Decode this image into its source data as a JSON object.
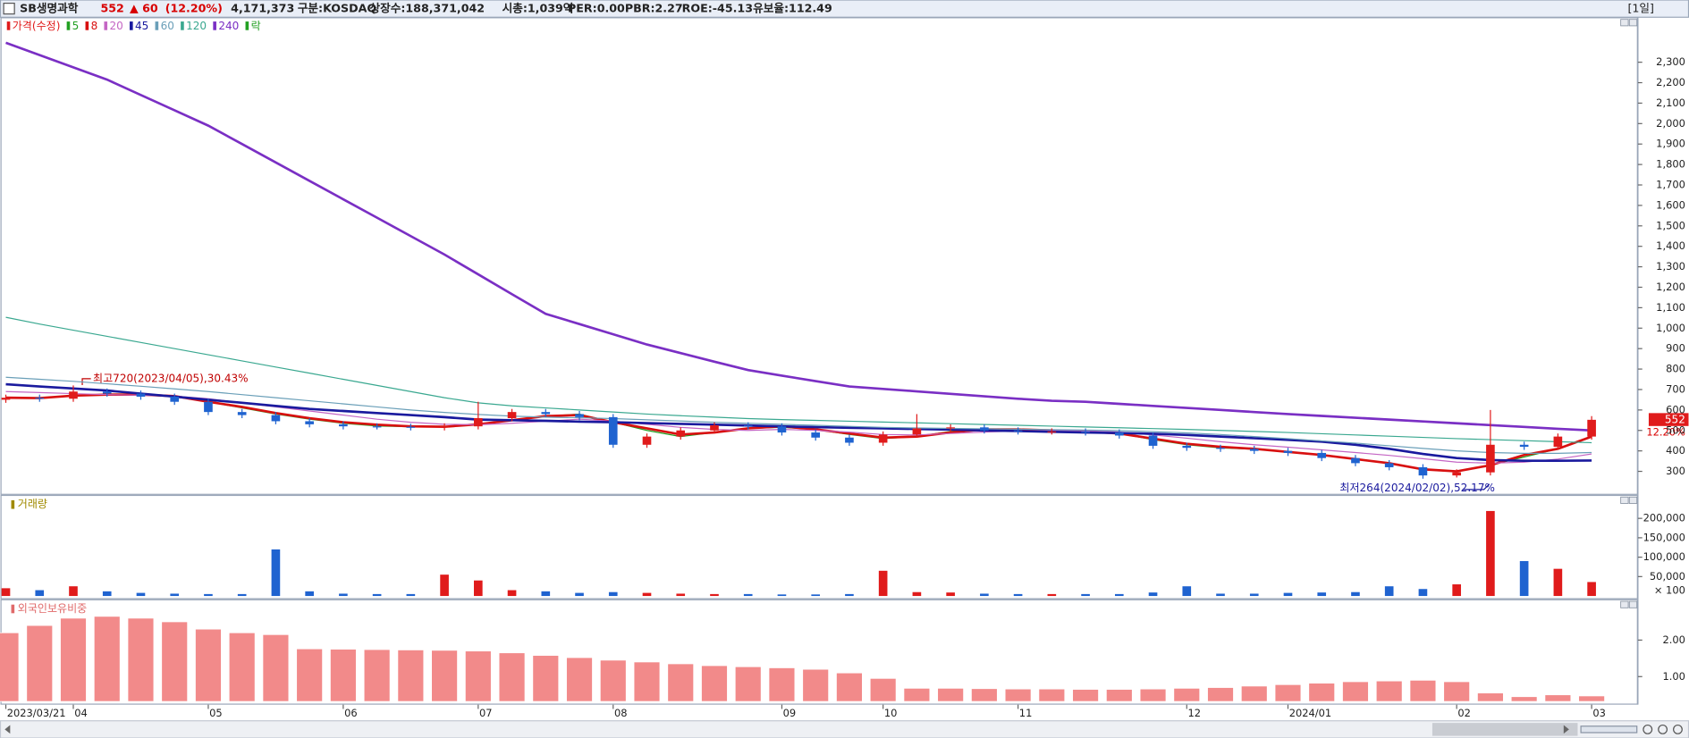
{
  "header": {
    "name": "SB생명과학",
    "price": "552",
    "change": "▲ 60",
    "change_rate": "(12.20%)",
    "volume": "4,171,373",
    "market": "구분:KOSDAQ",
    "shares": "상장수:188,371,042",
    "cap": "시총:1,039억",
    "per": "PER:0.00",
    "pbr": "PBR:2.27",
    "roe": "ROE:-45.13",
    "reserve": "유보율:112.49",
    "period": "[1일]"
  },
  "price_marker": {
    "price": "552",
    "rate": "12.20%"
  },
  "chart_data": [
    {
      "type": "candlestick",
      "legend_title": "가격(수정)",
      "lock_label": "락",
      "up_color": "#e01b1b",
      "down_color": "#1f63d0",
      "annotations": [
        "최고720(2023/04/05),30.43%",
        "최저264(2024/02/02),52.17%"
      ],
      "categories": [
        "2023/03/21",
        null,
        "04",
        null,
        null,
        null,
        "05",
        null,
        null,
        null,
        "06",
        null,
        null,
        null,
        "07",
        null,
        null,
        null,
        "08",
        null,
        null,
        null,
        null,
        "09",
        null,
        null,
        "10",
        null,
        null,
        null,
        "11",
        null,
        null,
        null,
        null,
        "12",
        null,
        null,
        "2024/01",
        null,
        null,
        null,
        null,
        "02",
        null,
        null,
        null,
        "03"
      ],
      "open": [
        650,
        660,
        655,
        690,
        680,
        665,
        640,
        590,
        575,
        545,
        530,
        520,
        518,
        515,
        520,
        560,
        590,
        580,
        565,
        430,
        470,
        500,
        525,
        520,
        490,
        465,
        440,
        480,
        510,
        515,
        500,
        495,
        495,
        490,
        475,
        425,
        415,
        410,
        400,
        390,
        365,
        340,
        320,
        280,
        295,
        430,
        420,
        470
      ],
      "high": [
        675,
        675,
        720,
        705,
        695,
        680,
        655,
        605,
        590,
        560,
        545,
        535,
        533,
        535,
        640,
        605,
        605,
        595,
        580,
        485,
        515,
        540,
        540,
        535,
        505,
        480,
        495,
        580,
        530,
        530,
        515,
        510,
        510,
        505,
        490,
        440,
        430,
        425,
        415,
        405,
        380,
        355,
        335,
        310,
        600,
        445,
        485,
        570
      ],
      "low": [
        635,
        640,
        640,
        665,
        650,
        625,
        575,
        560,
        530,
        515,
        505,
        505,
        500,
        500,
        505,
        545,
        565,
        550,
        415,
        415,
        455,
        485,
        505,
        475,
        450,
        425,
        425,
        465,
        495,
        485,
        480,
        480,
        475,
        460,
        410,
        400,
        395,
        385,
        375,
        350,
        325,
        305,
        264,
        270,
        280,
        405,
        405,
        455
      ],
      "close": [
        660,
        655,
        690,
        680,
        665,
        640,
        590,
        575,
        545,
        530,
        520,
        518,
        515,
        520,
        560,
        590,
        580,
        565,
        430,
        470,
        500,
        525,
        520,
        490,
        465,
        440,
        480,
        510,
        515,
        500,
        495,
        495,
        490,
        475,
        425,
        415,
        410,
        400,
        390,
        365,
        340,
        320,
        280,
        295,
        430,
        420,
        470,
        552
      ],
      "series": [
        {
          "name": "5",
          "color": "#22a022",
          "values": [
            658,
            657,
            670,
            678,
            678,
            668,
            640,
            610,
            580,
            555,
            535,
            522,
            518,
            517,
            530,
            550,
            570,
            580,
            540,
            500,
            470,
            490,
            510,
            515,
            505,
            480,
            460,
            470,
            495,
            508,
            505,
            500,
            495,
            485,
            455,
            430,
            415,
            408,
            395,
            380,
            360,
            340,
            310,
            300,
            330,
            370,
            410,
            470
          ]
        },
        {
          "name": "8",
          "color": "#d81010",
          "values": [
            660,
            658,
            670,
            675,
            675,
            668,
            640,
            615,
            585,
            560,
            540,
            528,
            520,
            518,
            530,
            550,
            570,
            575,
            540,
            510,
            480,
            490,
            510,
            520,
            505,
            485,
            465,
            470,
            490,
            505,
            505,
            500,
            495,
            485,
            460,
            435,
            420,
            410,
            395,
            380,
            360,
            340,
            310,
            300,
            330,
            380,
            410,
            470
          ]
        },
        {
          "name": "20",
          "color": "#c466c4",
          "values": [
            690,
            685,
            680,
            675,
            672,
            668,
            655,
            635,
            615,
            595,
            575,
            555,
            540,
            530,
            528,
            535,
            545,
            555,
            545,
            530,
            515,
            505,
            500,
            505,
            500,
            492,
            480,
            478,
            485,
            492,
            498,
            500,
            498,
            492,
            478,
            462,
            445,
            430,
            418,
            405,
            392,
            378,
            362,
            345,
            340,
            345,
            360,
            385
          ]
        },
        {
          "name": "45",
          "color": "#1a1a9e",
          "values": [
            726,
            715,
            705,
            695,
            680,
            665,
            650,
            635,
            620,
            605,
            595,
            585,
            575,
            565,
            553,
            550,
            547,
            543,
            540,
            536,
            532,
            528,
            524,
            520,
            516,
            513,
            510,
            507,
            504,
            500,
            497,
            493,
            490,
            487,
            484,
            478,
            470,
            462,
            454,
            445,
            430,
            410,
            385,
            365,
            355,
            352,
            352,
            353
          ]
        },
        {
          "name": "60",
          "color": "#6a9fb8",
          "values": [
            760,
            750,
            740,
            728,
            716,
            703,
            690,
            675,
            660,
            645,
            630,
            615,
            600,
            588,
            578,
            570,
            565,
            562,
            558,
            552,
            546,
            540,
            535,
            530,
            525,
            520,
            515,
            512,
            510,
            508,
            506,
            504,
            502,
            499,
            494,
            488,
            480,
            470,
            460,
            449,
            438,
            425,
            412,
            400,
            392,
            388,
            388,
            392
          ]
        },
        {
          "name": "120",
          "color": "#3aa890",
          "values": [
            1053,
            1020,
            990,
            960,
            930,
            900,
            870,
            840,
            810,
            780,
            750,
            720,
            690,
            660,
            635,
            620,
            610,
            600,
            590,
            580,
            572,
            565,
            558,
            553,
            549,
            545,
            541,
            537,
            533,
            529,
            525,
            521,
            517,
            513,
            509,
            505,
            500,
            495,
            490,
            484,
            478,
            472,
            466,
            460,
            455,
            450,
            445,
            440
          ]
        },
        {
          "name": "240",
          "color": "#7a2fc4",
          "values": [
            2395,
            2335,
            2275,
            2215,
            2140,
            2065,
            1990,
            1900,
            1810,
            1720,
            1630,
            1540,
            1450,
            1360,
            1263,
            1166,
            1070,
            1020,
            970,
            920,
            878,
            836,
            795,
            768,
            741,
            715,
            703,
            691,
            679,
            667,
            655,
            645,
            640,
            630,
            620,
            610,
            600,
            590,
            580,
            571,
            562,
            553,
            544,
            535,
            526,
            517,
            508,
            500
          ]
        }
      ],
      "ylim": [
        185,
        2520
      ],
      "yticks": [
        300,
        400,
        500,
        600,
        700,
        800,
        900,
        {
          "value": 1000,
          "label": "1,000"
        },
        {
          "value": 1100,
          "label": "1,100"
        },
        {
          "value": 1200,
          "label": "1,200"
        },
        {
          "value": 1300,
          "label": "1,300"
        },
        {
          "value": 1400,
          "label": "1,400"
        },
        {
          "value": 1500,
          "label": "1,500"
        },
        {
          "value": 1600,
          "label": "1,600"
        },
        {
          "value": 1700,
          "label": "1,700"
        },
        {
          "value": 1800,
          "label": "1,800"
        },
        {
          "value": 1900,
          "label": "1,900"
        },
        {
          "value": 2000,
          "label": "2,000"
        },
        {
          "value": 2100,
          "label": "2,100"
        },
        {
          "value": 2200,
          "label": "2,200"
        },
        {
          "value": 2300,
          "label": "2,300"
        }
      ]
    },
    {
      "type": "bar",
      "title": "거래량",
      "unit_label": "× 100",
      "values": [
        20000,
        15000,
        25000,
        12000,
        8000,
        6000,
        5000,
        5000,
        120000,
        12000,
        6000,
        5000,
        5000,
        55000,
        40000,
        15000,
        12000,
        8000,
        10000,
        8000,
        6000,
        5000,
        5000,
        4000,
        4000,
        5000,
        65000,
        10000,
        9000,
        6000,
        5000,
        5000,
        5000,
        5000,
        9000,
        25000,
        6000,
        6000,
        8000,
        9000,
        10000,
        25000,
        18000,
        30000,
        219000,
        90000,
        70000,
        36000
      ],
      "ylim": [
        0,
        255000
      ],
      "yticks": [
        {
          "value": 50000,
          "label": "50,000"
        },
        {
          "value": 100000,
          "label": "100,000"
        },
        {
          "value": 150000,
          "label": "150,000"
        },
        {
          "value": 200000,
          "label": "200,000"
        }
      ]
    },
    {
      "type": "bar",
      "title": "외국인보유비중",
      "color": "#f28a8a",
      "values": [
        2.2,
        2.4,
        2.6,
        2.65,
        2.6,
        2.5,
        2.3,
        2.2,
        2.15,
        1.76,
        1.75,
        1.74,
        1.73,
        1.72,
        1.7,
        1.65,
        1.58,
        1.52,
        1.45,
        1.4,
        1.35,
        1.3,
        1.27,
        1.24,
        1.2,
        1.1,
        0.95,
        0.68,
        0.68,
        0.67,
        0.66,
        0.66,
        0.65,
        0.65,
        0.66,
        0.68,
        0.7,
        0.74,
        0.78,
        0.82,
        0.86,
        0.88,
        0.9,
        0.86,
        0.55,
        0.45,
        0.5,
        0.47
      ],
      "ylim": [
        0.32,
        3.09
      ],
      "yticks": [
        {
          "value": 1,
          "label": "1.00"
        },
        {
          "value": 2,
          "label": "2.00"
        }
      ]
    }
  ]
}
